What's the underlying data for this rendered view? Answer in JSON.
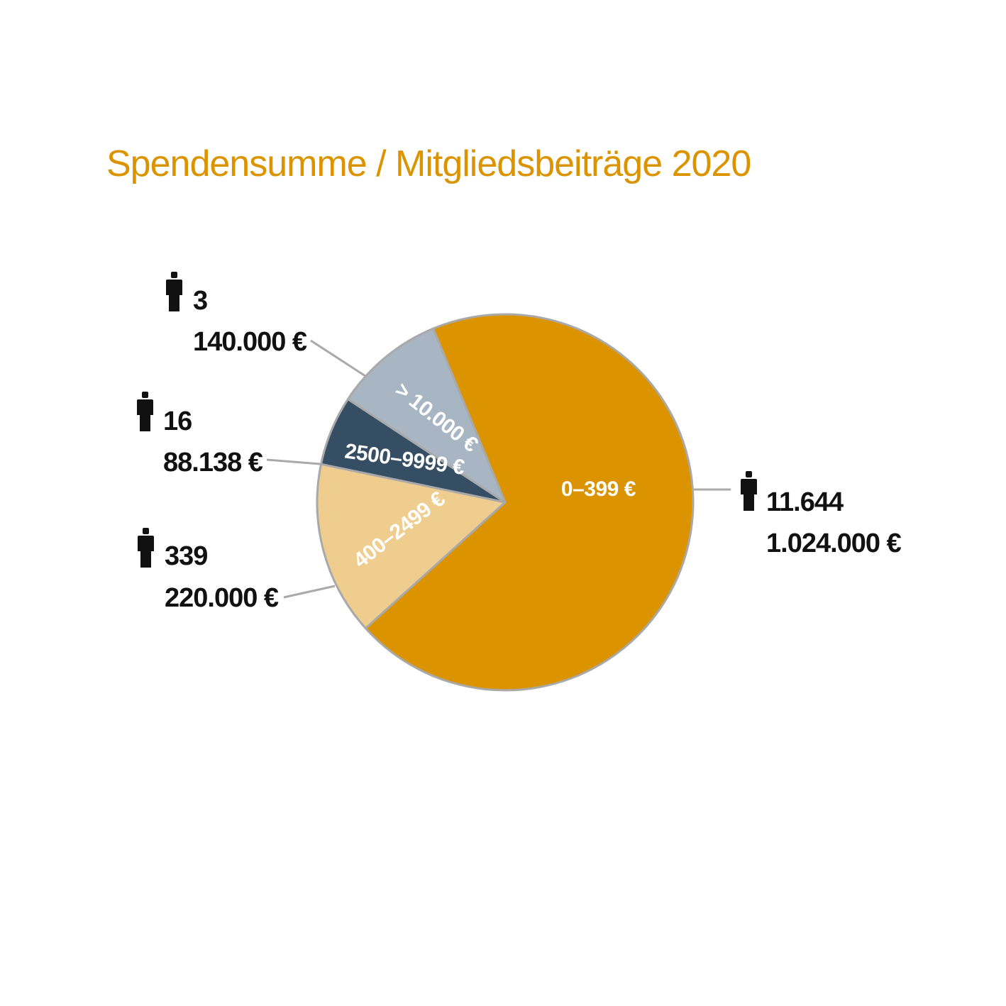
{
  "chart_data": {
    "type": "pie",
    "title": "Spendensumme / Mitgliedsbeiträge 2020",
    "title_color": "#db9400",
    "slice_border_color": "#a9a9a9",
    "leader_color": "#a9a9a9",
    "person_icon": "person-icon",
    "slices": [
      {
        "label": "0–399 €",
        "donors": "11.644",
        "amount": "1.024.000 €",
        "value": 1024000,
        "color": "#db9400"
      },
      {
        "label": "400–2499 €",
        "donors": "339",
        "amount": "220.000 €",
        "value": 220000,
        "color": "#efcd8f"
      },
      {
        "label": "2500–9999 €",
        "donors": "16",
        "amount": "88.138 €",
        "value": 88138,
        "color": "#354e63"
      },
      {
        "label": "> 10.000 €",
        "donors": "3",
        "amount": "140.000 €",
        "value": 140000,
        "color": "#a8b6c3"
      }
    ]
  }
}
